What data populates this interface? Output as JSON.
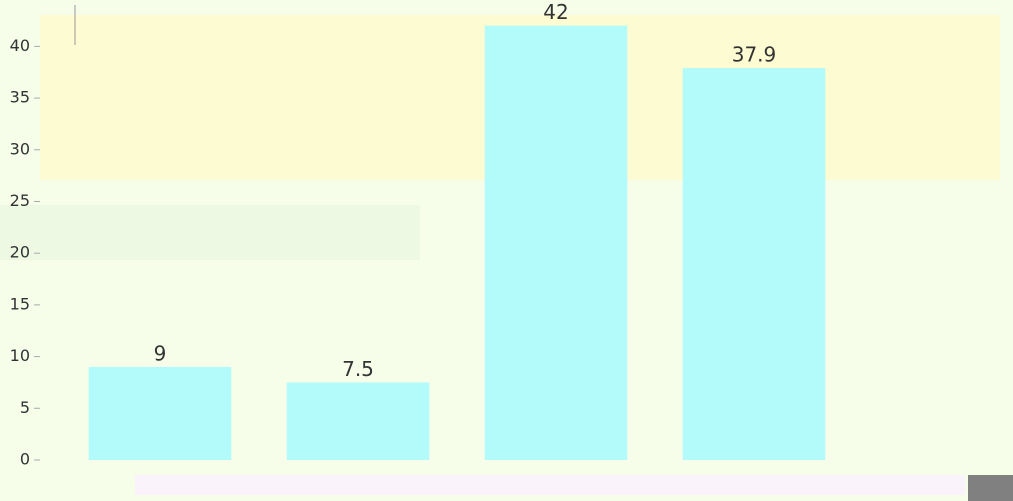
{
  "chart_data": {
    "type": "bar",
    "categories": [
      null,
      null,
      null,
      null
    ],
    "values": [
      9,
      7.5,
      42,
      37.9
    ],
    "color": "#b3fbfb",
    "ylim": [
      0,
      44
    ],
    "yticks": [
      0,
      5,
      10,
      15,
      20,
      25,
      30,
      35,
      40
    ],
    "grid": false
  }
}
